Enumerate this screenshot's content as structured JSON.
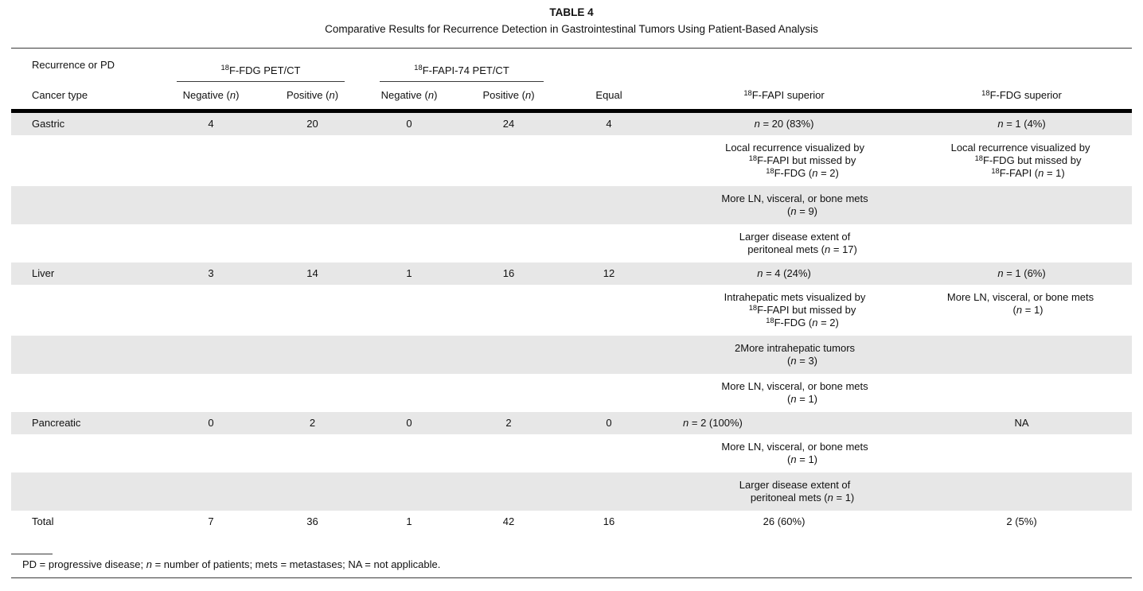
{
  "colors": {
    "row-shade": "#e7e7e7",
    "rule": "#000000",
    "text": "#111111"
  },
  "title": "TABLE 4",
  "subtitle": "Comparative Results for Recurrence Detection in Gastrointestinal Tumors Using Patient-Based Analysis",
  "header": {
    "stub_top": "Recurrence or PD",
    "stub_bottom": "Cancer type",
    "group_fdg": "<sup>18</sup>F-FDG PET/CT",
    "group_fapi": "<sup>18</sup>F-FAPI-74 PET/CT",
    "cols": [
      "Negative (<i>n</i>)",
      "Positive (<i>n</i>)",
      "Negative (<i>n</i>)",
      "Positive (<i>n</i>)",
      "Equal",
      "<sup>18</sup>F-FAPI superior",
      "<sup>18</sup>F-FDG superior"
    ]
  },
  "rows": [
    [
      "Gastric",
      "4",
      "20",
      "0",
      "24",
      "4",
      "<i>n</i> = 20 (83%)",
      "<i>n</i> = 1 (4%)"
    ],
    [
      "",
      "",
      "",
      "",
      "",
      "",
      "Local recurrence visualized by<br><sup>18</sup>F-FAPI but missed by<br><sup>18</sup>F-FDG (<i>n</i> = 2)",
      "Local recurrence visualized by<br><sup>18</sup>F-FDG but missed by<br><sup>18</sup>F-FAPI (<i>n</i> = 1)"
    ],
    [
      "",
      "",
      "",
      "",
      "",
      "",
      "More LN, visceral, or bone mets<br>(<i>n</i> = 9)",
      ""
    ],
    [
      "",
      "",
      "",
      "",
      "",
      "",
      "Larger disease extent of<br>peritoneal mets (<i>n</i> = 17)",
      ""
    ],
    [
      "Liver",
      "3",
      "14",
      "1",
      "16",
      "12",
      "<i>n</i> = 4 (24%)",
      "<i>n</i> = 1 (6%)"
    ],
    [
      "",
      "",
      "",
      "",
      "",
      "",
      "Intrahepatic mets visualized by<br><sup>18</sup>F-FAPI but missed by<br><sup>18</sup>F-FDG (<i>n</i> = 2)",
      "More LN, visceral, or bone mets<br>(<i>n</i> = 1)"
    ],
    [
      "",
      "",
      "",
      "",
      "",
      "",
      "2More intrahepatic tumors<br>(<i>n</i> = 3)",
      ""
    ],
    [
      "",
      "",
      "",
      "",
      "",
      "",
      "More LN, visceral, or bone mets<br>(<i>n</i> = 1)",
      ""
    ],
    [
      "Pancreatic",
      "0",
      "2",
      "0",
      "2",
      "0",
      "<i>n</i> = 2 (100%)",
      "NA"
    ],
    [
      "",
      "",
      "",
      "",
      "",
      "",
      "More LN, visceral, or bone mets<br>(<i>n</i> = 1)",
      ""
    ],
    [
      "",
      "",
      "",
      "",
      "",
      "",
      "Larger disease extent of<br>peritoneal mets (<i>n</i> = 1)",
      ""
    ],
    [
      "Total",
      "7",
      "36",
      "1",
      "42",
      "16",
      "26 (60%)",
      "2 (5%)"
    ]
  ],
  "footnote": "PD = progressive disease; <i>n</i> = number of patients; mets = metastases; NA = not applicable."
}
